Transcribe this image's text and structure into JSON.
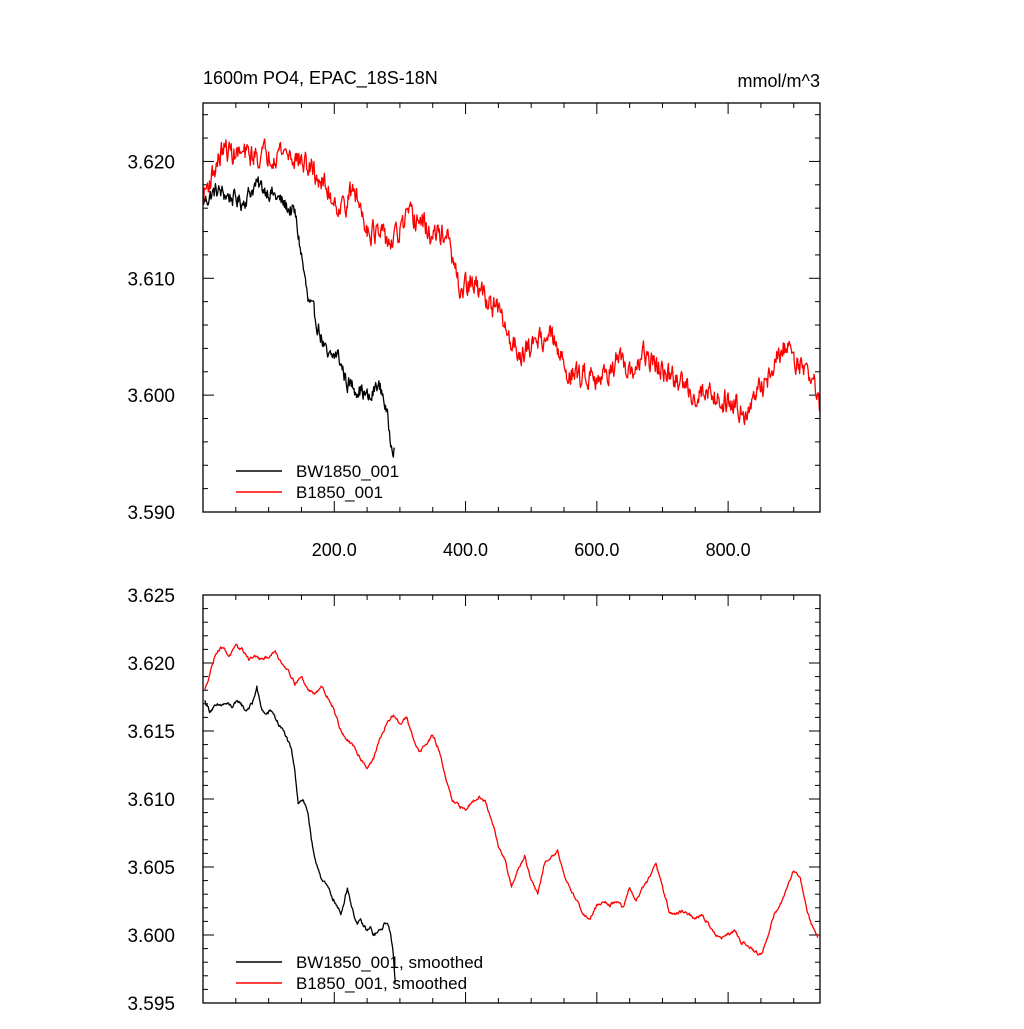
{
  "chart_data": [
    {
      "type": "line",
      "title": "1600m PO4, EPAC_18S-18N",
      "units": "mmol/m^3",
      "xlim": [
        0,
        940
      ],
      "ylim": [
        3.59,
        3.625
      ],
      "x_ticks": [
        200,
        400,
        600,
        800
      ],
      "x_tick_labels": [
        "200.0",
        "400.0",
        "600.0",
        "800.0"
      ],
      "y_ticks": [
        3.59,
        3.6,
        3.61,
        3.62
      ],
      "y_tick_labels": [
        "3.590",
        "3.600",
        "3.610",
        "3.620"
      ],
      "grid": false,
      "legend_position": "bottom-left",
      "series": [
        {
          "name": "BW1850_001",
          "color": "#000000",
          "noise": 0.0012,
          "x": [
            0,
            20,
            40,
            60,
            80,
            100,
            120,
            140,
            150,
            160,
            175,
            190,
            205,
            220,
            240,
            255,
            265,
            275,
            285,
            292
          ],
          "y": [
            3.6165,
            3.6175,
            3.617,
            3.6165,
            3.618,
            3.6175,
            3.6165,
            3.6155,
            3.612,
            3.608,
            3.606,
            3.603,
            3.6035,
            3.601,
            3.6005,
            3.5995,
            3.601,
            3.6,
            3.5965,
            3.5955
          ]
        },
        {
          "name": "B1850_001",
          "color": "#ff0000",
          "noise": 0.0017,
          "x": [
            0,
            30,
            60,
            90,
            120,
            150,
            170,
            190,
            210,
            230,
            250,
            270,
            290,
            310,
            330,
            350,
            370,
            390,
            410,
            430,
            450,
            470,
            490,
            510,
            530,
            550,
            570,
            590,
            610,
            630,
            650,
            670,
            690,
            710,
            730,
            750,
            770,
            790,
            810,
            830,
            850,
            870,
            890,
            910,
            930,
            940
          ],
          "y": [
            3.617,
            3.621,
            3.6205,
            3.6205,
            3.621,
            3.62,
            3.619,
            3.6175,
            3.616,
            3.6175,
            3.6145,
            3.6135,
            3.613,
            3.615,
            3.615,
            3.6135,
            3.614,
            3.609,
            3.6095,
            3.6085,
            3.607,
            3.6045,
            3.6035,
            3.605,
            3.605,
            3.6025,
            3.6015,
            3.602,
            3.6015,
            3.603,
            3.6015,
            3.6035,
            3.6025,
            3.6015,
            3.601,
            3.6,
            3.6005,
            3.5995,
            3.5995,
            3.5985,
            3.6005,
            3.6025,
            3.6045,
            3.6025,
            3.6015,
            3.5985
          ]
        }
      ]
    },
    {
      "type": "line",
      "xlim": [
        0,
        940
      ],
      "ylim": [
        3.595,
        3.625
      ],
      "x_ticks": [
        200,
        400,
        600,
        800
      ],
      "y_ticks": [
        3.595,
        3.6,
        3.605,
        3.61,
        3.615,
        3.62,
        3.625
      ],
      "y_tick_labels": [
        "3.595",
        "3.600",
        "3.605",
        "3.610",
        "3.615",
        "3.620",
        "3.625"
      ],
      "grid": false,
      "legend_position": "bottom-left",
      "series": [
        {
          "name": "BW1850_001, smoothed",
          "color": "#000000",
          "noise": 0.00025,
          "x": [
            3,
            10,
            20,
            35,
            45,
            55,
            65,
            75,
            82,
            88,
            95,
            105,
            115,
            125,
            135,
            140,
            145,
            152,
            160,
            165,
            170,
            175,
            182,
            190,
            200,
            210,
            220,
            228,
            235,
            240,
            250,
            255,
            260,
            270,
            280,
            285,
            290,
            293
          ],
          "y": [
            3.6172,
            3.6165,
            3.6168,
            3.617,
            3.6168,
            3.6172,
            3.6165,
            3.617,
            3.6182,
            3.6168,
            3.6162,
            3.6165,
            3.6155,
            3.6148,
            3.6135,
            3.612,
            3.6098,
            3.61,
            3.609,
            3.607,
            3.6055,
            3.605,
            3.604,
            3.6035,
            3.6025,
            3.6015,
            3.6035,
            3.6018,
            3.6008,
            3.601,
            3.6003,
            3.6005,
            3.6,
            3.6003,
            3.601,
            3.6003,
            3.5985,
            3.5965
          ]
        },
        {
          "name": "B1850_001, smoothed",
          "color": "#ff0000",
          "noise": 0.0002,
          "x": [
            3,
            10,
            20,
            30,
            40,
            50,
            60,
            70,
            80,
            90,
            100,
            110,
            120,
            130,
            140,
            150,
            160,
            170,
            180,
            190,
            200,
            210,
            220,
            230,
            240,
            250,
            260,
            270,
            280,
            290,
            300,
            310,
            320,
            330,
            340,
            350,
            360,
            370,
            380,
            390,
            400,
            410,
            420,
            430,
            440,
            450,
            460,
            470,
            480,
            490,
            500,
            510,
            520,
            530,
            540,
            550,
            560,
            570,
            580,
            590,
            600,
            610,
            620,
            630,
            640,
            650,
            660,
            670,
            680,
            690,
            700,
            710,
            720,
            730,
            740,
            750,
            760,
            770,
            780,
            790,
            800,
            810,
            820,
            830,
            840,
            850,
            860,
            870,
            880,
            890,
            900,
            910,
            920,
            930,
            937
          ],
          "y": [
            3.618,
            3.6192,
            3.6208,
            3.6212,
            3.6205,
            3.6212,
            3.621,
            3.6203,
            3.6205,
            3.6202,
            3.6205,
            3.6208,
            3.62,
            3.6195,
            3.6185,
            3.619,
            3.618,
            3.6178,
            3.6183,
            3.6175,
            3.6165,
            3.615,
            3.6143,
            3.6138,
            3.613,
            3.6123,
            3.613,
            3.6145,
            3.6155,
            3.6162,
            3.6155,
            3.616,
            3.6145,
            3.6135,
            3.614,
            3.6147,
            3.6135,
            3.6115,
            3.6098,
            3.6095,
            3.6092,
            3.6098,
            3.6102,
            3.6098,
            3.6085,
            3.6065,
            3.6055,
            3.6035,
            3.6048,
            3.6058,
            3.604,
            3.603,
            3.6052,
            3.6058,
            3.6062,
            3.6045,
            3.6033,
            3.6025,
            3.6015,
            3.6012,
            3.6022,
            3.6025,
            3.6022,
            3.6025,
            3.602,
            3.6035,
            3.6025,
            3.6035,
            3.6042,
            3.6052,
            3.6035,
            3.6018,
            3.6015,
            3.6018,
            3.6015,
            3.6012,
            3.6015,
            3.6008,
            3.6,
            3.5998,
            3.6,
            3.6003,
            3.5995,
            3.5993,
            3.5988,
            3.5985,
            3.5998,
            3.6015,
            3.6022,
            3.6035,
            3.6048,
            3.6042,
            3.6018,
            3.6005,
            3.5998
          ]
        }
      ]
    }
  ]
}
